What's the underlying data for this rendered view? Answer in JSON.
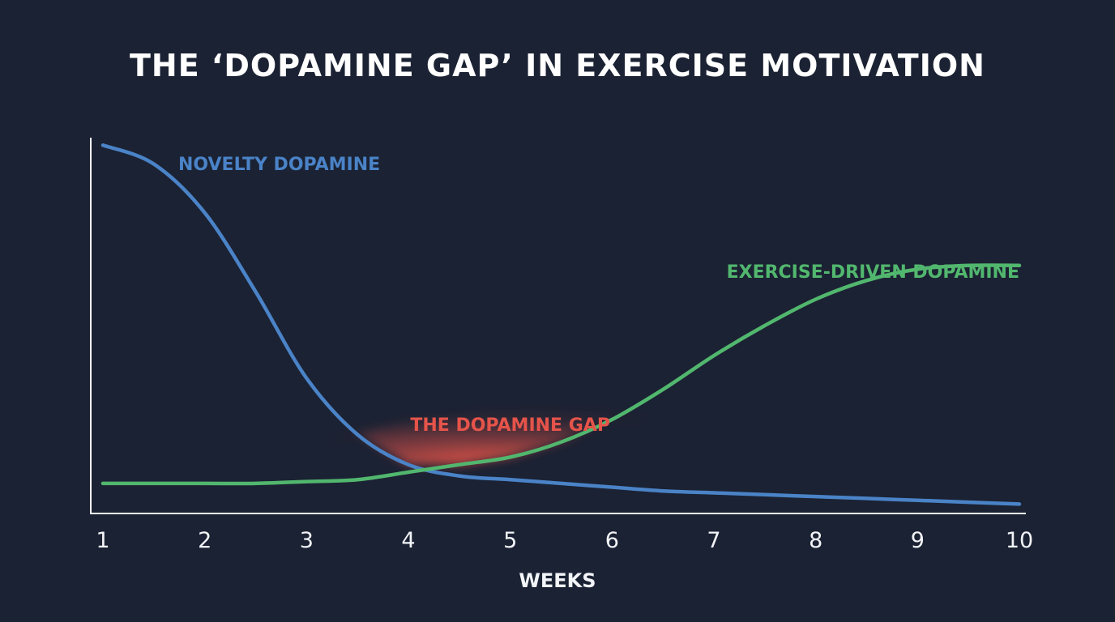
{
  "chart_data": {
    "type": "line",
    "title": "THE ‘DOPAMINE GAP’ IN EXERCISE MOTIVATION",
    "xlabel": "WEEKS",
    "ylabel": "",
    "x": [
      1,
      1.5,
      2,
      2.5,
      3,
      3.5,
      4,
      4.5,
      5,
      5.5,
      6,
      6.5,
      7,
      7.5,
      8,
      8.5,
      9,
      9.5,
      10
    ],
    "xticks": [
      "1",
      "2",
      "3",
      "4",
      "5",
      "6",
      "7",
      "8",
      "9",
      "10"
    ],
    "xlim": [
      1,
      10
    ],
    "ylim": [
      0,
      1
    ],
    "grid": false,
    "series": [
      {
        "name": "NOVELTY DOPAMINE",
        "color": "#4a83c7",
        "values": [
          0.98,
          0.93,
          0.8,
          0.59,
          0.36,
          0.21,
          0.13,
          0.1,
          0.09,
          0.08,
          0.07,
          0.06,
          0.055,
          0.05,
          0.045,
          0.04,
          0.035,
          0.03,
          0.025
        ]
      },
      {
        "name": "EXERCISE-DRIVEN DOPAMINE",
        "color": "#52b76e",
        "values": [
          0.08,
          0.08,
          0.08,
          0.08,
          0.085,
          0.09,
          0.11,
          0.13,
          0.15,
          0.19,
          0.25,
          0.33,
          0.42,
          0.5,
          0.57,
          0.62,
          0.65,
          0.66,
          0.66
        ]
      }
    ],
    "annotations": [
      {
        "text": "THE DOPAMINE GAP",
        "x": 5,
        "color": "#e5544a",
        "x_range": [
          3.2,
          6.4
        ]
      }
    ]
  }
}
